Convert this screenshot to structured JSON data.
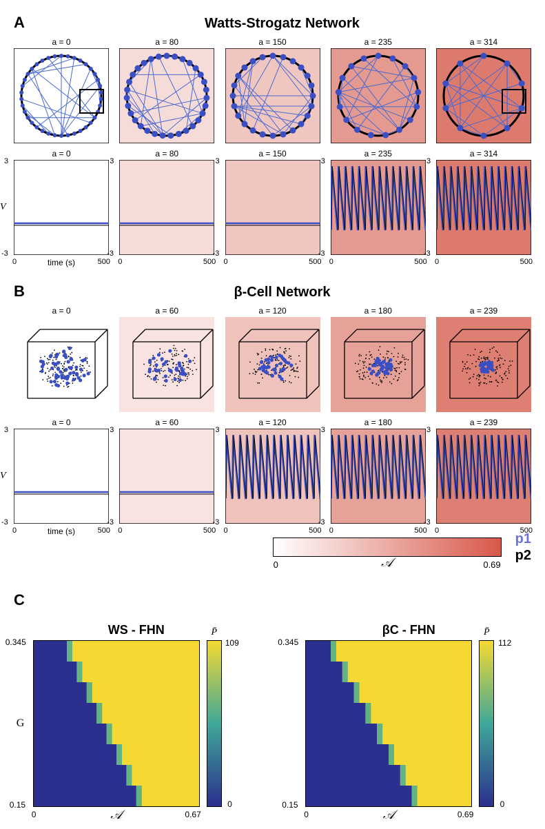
{
  "colors": {
    "node_blue": "#3a4fc4",
    "edge_blue": "#4a6ad0",
    "ring_black": "#000000",
    "p1_color": "#6d74d9",
    "p2_color": "#000000",
    "heatmap_blue": "#2b2f8e",
    "heatmap_yellow": "#f5d932",
    "heatmap_teal": "#3fa898"
  },
  "panelA": {
    "label": "A",
    "title": "Watts-Strogatz Network",
    "a_values": [
      0,
      80,
      150,
      235,
      314
    ],
    "bg_colors": [
      "#ffffff",
      "#f6dcd9",
      "#f0c6c1",
      "#e49a90",
      "#dc7a6e"
    ],
    "has_highlight_box": [
      true,
      false,
      false,
      false,
      true
    ],
    "oscillation": [
      false,
      false,
      false,
      true,
      true
    ],
    "trace": {
      "ylim": [
        -3,
        3
      ],
      "xlim": [
        0,
        500
      ],
      "ylabel": "V",
      "xlabel": "time (s)",
      "flat_value": -1.0,
      "osc_min": -1.4,
      "osc_max": 2.6,
      "osc_periods": 14
    }
  },
  "panelB": {
    "label": "B",
    "title": "β-Cell Network",
    "a_values": [
      0,
      60,
      120,
      180,
      239
    ],
    "bg_colors": [
      "#ffffff",
      "#f8e3e0",
      "#efc2bc",
      "#e6a299",
      "#dd7f73"
    ],
    "oscillation": [
      false,
      false,
      true,
      true,
      true
    ],
    "trace": {
      "ylim": [
        -3,
        3
      ],
      "xlim": [
        0,
        500
      ],
      "ylabel": "V",
      "xlabel": "time (s)",
      "flat_value": -1.0,
      "osc_min": -1.4,
      "osc_max": 2.6,
      "osc_periods": 14
    }
  },
  "colorbar": {
    "min": 0,
    "max": 0.69,
    "label": "𝒜",
    "gradient_start": "#ffffff",
    "gradient_end": "#d8584a",
    "p1": "p1",
    "p2": "p2"
  },
  "panelC": {
    "label": "C",
    "heatmaps": [
      {
        "title": "WS - FHN",
        "ylabel": "G",
        "xlabel": "𝒜",
        "ylim": [
          0.15,
          0.345
        ],
        "xlim": [
          0,
          0.67
        ],
        "cbar_label": "P̄",
        "cbar_min": 0,
        "cbar_max": 109,
        "step_fractions": [
          0.62,
          0.56,
          0.5,
          0.44,
          0.38,
          0.32,
          0.26,
          0.2
        ]
      },
      {
        "title": "βC - FHN",
        "ylabel": "G",
        "xlabel": "𝒜",
        "ylim": [
          0.15,
          0.345
        ],
        "xlim": [
          0,
          0.69
        ],
        "cbar_label": "P̄",
        "cbar_min": 0,
        "cbar_max": 112,
        "step_fractions": [
          0.64,
          0.57,
          0.5,
          0.43,
          0.36,
          0.29,
          0.22,
          0.15
        ]
      }
    ]
  }
}
